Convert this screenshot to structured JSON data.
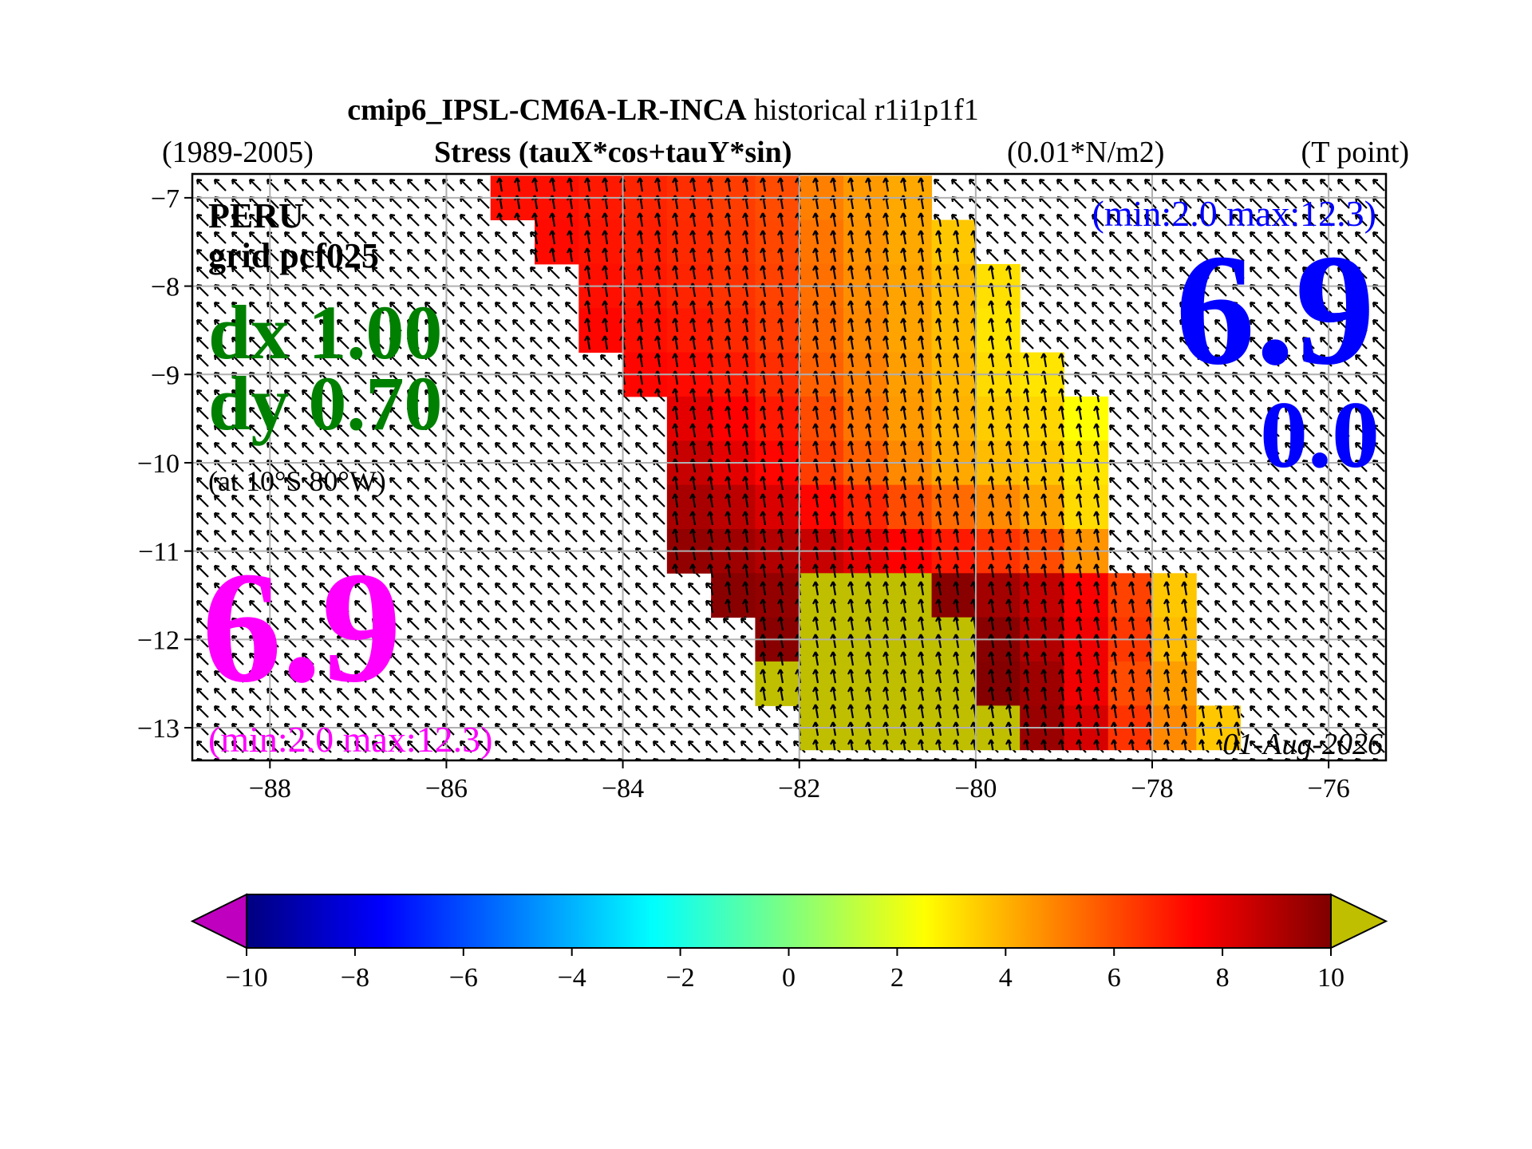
{
  "chart_data": {
    "type": "heatmap",
    "title_model": "cmip6_IPSL-CM6A-LR-INCA",
    "title_experiment": "historical r1i1p1f1",
    "period": "(1989-2005)",
    "variable": "Stress (tauX*cos+tauY*sin)",
    "units": "(0.01*N/m2)",
    "grid_point": "(T point)",
    "region": "PERU",
    "grid_label": "grid pcf025",
    "dx_label": "dx 1.00",
    "dy_label": "dy 0.70",
    "location_label": "(at 10°S 80°W)",
    "left_value_label": "6.9",
    "left_range_label": "(min:2.0 max:12.3)",
    "right_range_label": "(min:2.0 max:12.3)",
    "right_value_label": "6.9",
    "right_second_label": "0.0",
    "date_label": "01-Aug-2026",
    "lon_edges": [
      -86,
      -85.5,
      -85,
      -84.5,
      -84,
      -83.5,
      -83,
      -82.5,
      -82,
      -81.5,
      -81,
      -80.5,
      -80,
      -79.5,
      -79,
      -78.5,
      -78,
      -77.5,
      -77,
      -76.5
    ],
    "lat_edges": [
      -6.75,
      -7.25,
      -7.75,
      -8.25,
      -8.75,
      -9.25,
      -9.75,
      -10.25,
      -10.75,
      -11.25,
      -11.75,
      -12.25,
      -12.75,
      -13.25
    ],
    "values": [
      [
        null,
        7.2,
        7.2,
        7.0,
        6.8,
        6.6,
        6.3,
        6.0,
        5.0,
        4.5,
        4.2,
        null,
        null,
        null,
        null,
        null,
        null,
        null,
        null
      ],
      [
        null,
        null,
        7.3,
        7.1,
        6.9,
        6.7,
        6.4,
        6.1,
        5.2,
        4.6,
        4.2,
        3.6,
        null,
        null,
        null,
        null,
        null,
        null,
        null
      ],
      [
        null,
        null,
        null,
        7.2,
        7.0,
        6.8,
        6.5,
        6.2,
        5.3,
        4.7,
        4.3,
        3.8,
        3.1,
        null,
        null,
        null,
        null,
        null,
        null
      ],
      [
        null,
        null,
        null,
        7.4,
        7.2,
        7.0,
        6.7,
        6.3,
        5.4,
        4.8,
        4.3,
        3.8,
        3.0,
        null,
        null,
        null,
        null,
        null,
        null
      ],
      [
        null,
        null,
        null,
        null,
        7.4,
        7.3,
        7.0,
        6.6,
        5.6,
        5.0,
        4.4,
        3.9,
        3.2,
        3.0,
        null,
        null,
        null,
        null,
        null
      ],
      [
        null,
        null,
        null,
        null,
        null,
        8.0,
        7.5,
        7.0,
        6.0,
        5.2,
        4.5,
        4.0,
        3.5,
        3.3,
        2.5,
        null,
        null,
        null,
        null
      ],
      [
        null,
        null,
        null,
        null,
        null,
        8.6,
        8.0,
        7.4,
        6.3,
        5.6,
        4.8,
        4.2,
        3.8,
        3.6,
        3.0,
        null,
        null,
        null,
        null
      ],
      [
        null,
        null,
        null,
        null,
        null,
        9.2,
        8.8,
        8.2,
        7.4,
        6.8,
        6.0,
        5.4,
        4.8,
        4.3,
        3.2,
        null,
        null,
        null,
        null
      ],
      [
        null,
        null,
        null,
        null,
        null,
        9.6,
        9.4,
        9.0,
        8.6,
        8.0,
        7.5,
        7.0,
        6.5,
        6.0,
        4.6,
        null,
        null,
        null,
        null
      ],
      [
        null,
        null,
        null,
        null,
        null,
        null,
        9.8,
        9.6,
        10.5,
        10.6,
        10.4,
        9.8,
        9.3,
        8.7,
        7.6,
        6.2,
        3.6,
        null,
        null
      ],
      [
        null,
        null,
        null,
        null,
        null,
        null,
        null,
        9.8,
        11.0,
        11.5,
        11.0,
        10.6,
        9.8,
        9.0,
        7.8,
        6.4,
        3.8,
        null,
        null
      ],
      [
        null,
        null,
        null,
        null,
        null,
        null,
        null,
        11.5,
        12.0,
        12.3,
        11.5,
        11.0,
        9.9,
        9.4,
        7.8,
        6.0,
        4.4,
        null,
        null
      ],
      [
        null,
        null,
        null,
        null,
        null,
        null,
        null,
        null,
        12.0,
        12.3,
        12.0,
        11.8,
        10.6,
        9.5,
        8.3,
        6.5,
        4.8,
        3.6,
        null
      ]
    ],
    "xlim": [
      -88.88,
      -75.35
    ],
    "ylim": [
      -13.37,
      -6.73
    ],
    "xticks": [
      {
        "value": -88,
        "label": "−88"
      },
      {
        "value": -86,
        "label": "−86"
      },
      {
        "value": -84,
        "label": "−84"
      },
      {
        "value": -82,
        "label": "−82"
      },
      {
        "value": -80,
        "label": "−80"
      },
      {
        "value": -78,
        "label": "−78"
      },
      {
        "value": -76,
        "label": "−76"
      }
    ],
    "yticks": [
      {
        "value": -7,
        "label": "−7"
      },
      {
        "value": -8,
        "label": "−8"
      },
      {
        "value": -9,
        "label": "−9"
      },
      {
        "value": -10,
        "label": "−10"
      },
      {
        "value": -11,
        "label": "−11"
      },
      {
        "value": -12,
        "label": "−12"
      },
      {
        "value": -13,
        "label": "−13"
      }
    ],
    "grid": true,
    "clim": [
      -10,
      10
    ],
    "colormap": [
      "#00007f",
      "#0000ff",
      "#007fff",
      "#00ffff",
      "#7fff7f",
      "#ffff00",
      "#ff7f00",
      "#ff0000",
      "#7f0000"
    ],
    "over_color": "#bfbf00",
    "under_color": "#bf00bf",
    "cticks": [
      {
        "value": -10,
        "label": "−10"
      },
      {
        "value": -8,
        "label": "−8"
      },
      {
        "value": -6,
        "label": "−6"
      },
      {
        "value": -4,
        "label": "−4"
      },
      {
        "value": -2,
        "label": "−2"
      },
      0,
      2,
      4,
      6,
      8,
      10
    ]
  }
}
